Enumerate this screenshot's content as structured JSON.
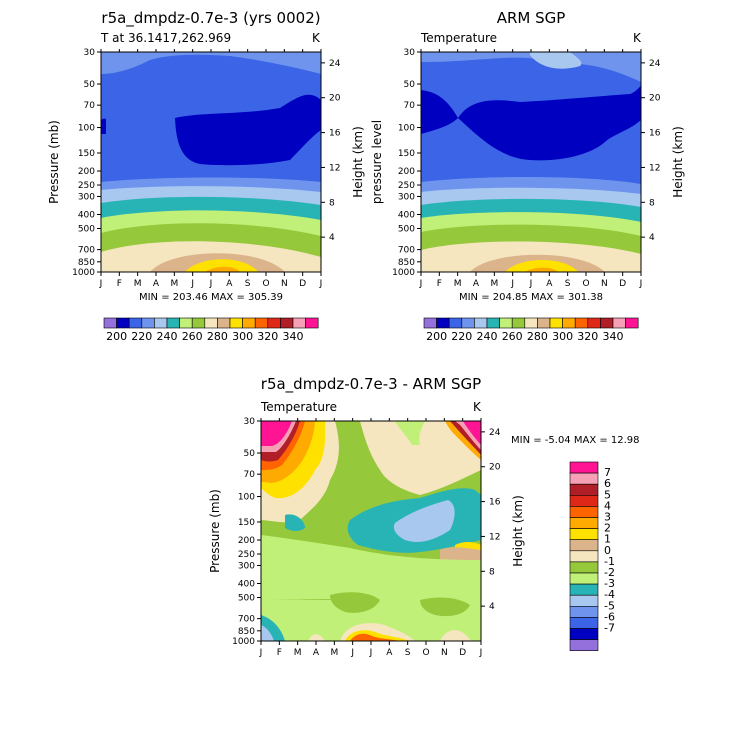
{
  "colors": {
    "abs_palette": [
      "#9370db",
      "#0000c0",
      "#3c64e6",
      "#6f94ee",
      "#a8c8f0",
      "#28b4b4",
      "#c0f078",
      "#96c83c",
      "#f5e6c0",
      "#dcb48c",
      "#ffe100",
      "#ffaa00",
      "#ff6400",
      "#e02818",
      "#b01e28",
      "#f5a0b4",
      "#ff1493"
    ],
    "diff_palette": [
      "#ff1493",
      "#f5a0b4",
      "#b01e28",
      "#e02818",
      "#ff6400",
      "#ffaa00",
      "#ffe100",
      "#dcb48c",
      "#f5e6c0",
      "#96c83c",
      "#c0f078",
      "#28b4b4",
      "#a8c8f0",
      "#6f94ee",
      "#3c64e6",
      "#0000c0",
      "#9370db"
    ]
  },
  "chart_data": [
    {
      "type": "heatmap",
      "id": "model",
      "title": "r5a_dmpdz-0.7e-3 (yrs 0002)",
      "subtitle_left": "T at 36.1417,262.969",
      "subtitle_right": "K",
      "ylabel": "Pressure (mb)",
      "y2label": "Height (km)",
      "x_ticks": [
        "J",
        "F",
        "M",
        "A",
        "M",
        "J",
        "J",
        "A",
        "S",
        "O",
        "N",
        "D",
        "J"
      ],
      "y_ticks": [
        "30",
        "50",
        "70",
        "100",
        "150",
        "200",
        "250",
        "300",
        "400",
        "500",
        "700",
        "850",
        "1000"
      ],
      "y_values": [
        30,
        50,
        70,
        100,
        150,
        200,
        250,
        300,
        400,
        500,
        700,
        850,
        1000
      ],
      "y2_ticks": [
        "24",
        "20",
        "16",
        "12",
        "8",
        "4"
      ],
      "y2_values": [
        24,
        20,
        16,
        12,
        8,
        4
      ],
      "min_max": "MIN = 203.46 MAX = 305.39",
      "min": 203.46,
      "max": 305.39
    },
    {
      "type": "heatmap",
      "id": "obs",
      "title": "ARM SGP",
      "subtitle_left": "Temperature",
      "subtitle_right": "K",
      "ylabel": "pressure level",
      "y2label": "Height (km)",
      "x_ticks": [
        "J",
        "F",
        "M",
        "A",
        "M",
        "J",
        "J",
        "A",
        "S",
        "O",
        "N",
        "D",
        "J"
      ],
      "y_ticks": [
        "30",
        "50",
        "70",
        "100",
        "150",
        "200",
        "250",
        "300",
        "400",
        "500",
        "700",
        "850",
        "1000"
      ],
      "y_values": [
        30,
        50,
        70,
        100,
        150,
        200,
        250,
        300,
        400,
        500,
        700,
        850,
        1000
      ],
      "y2_ticks": [
        "24",
        "20",
        "16",
        "12",
        "8",
        "4"
      ],
      "y2_values": [
        24,
        20,
        16,
        12,
        8,
        4
      ],
      "min_max": "MIN = 204.85 MAX = 301.38",
      "min": 204.85,
      "max": 301.38
    },
    {
      "type": "heatmap",
      "id": "diff",
      "title": "r5a_dmpdz-0.7e-3 - ARM SGP",
      "subtitle_left": "Temperature",
      "subtitle_right": "K",
      "ylabel": "Pressure (mb)",
      "y2label": "Height (km)",
      "x_ticks": [
        "J",
        "F",
        "M",
        "A",
        "M",
        "J",
        "J",
        "A",
        "S",
        "O",
        "N",
        "D",
        "J"
      ],
      "y_ticks": [
        "30",
        "50",
        "70",
        "100",
        "150",
        "200",
        "250",
        "300",
        "400",
        "500",
        "700",
        "850",
        "1000"
      ],
      "y_values": [
        30,
        50,
        70,
        100,
        150,
        200,
        250,
        300,
        400,
        500,
        700,
        850,
        1000
      ],
      "y2_ticks": [
        "24",
        "20",
        "16",
        "12",
        "8",
        "4"
      ],
      "y2_values": [
        24,
        20,
        16,
        12,
        8,
        4
      ],
      "min_max": "MIN =   -5.04 MAX =   12.98",
      "min": -5.04,
      "max": 12.98
    }
  ],
  "legend_abs": {
    "labels": [
      "200",
      "220",
      "240",
      "260",
      "280",
      "300",
      "320",
      "340"
    ],
    "levels": [
      200,
      210,
      220,
      230,
      240,
      250,
      260,
      270,
      280,
      290,
      300,
      310,
      320,
      330,
      340,
      350
    ]
  },
  "legend_diff": {
    "labels": [
      "7",
      "6",
      "5",
      "4",
      "3",
      "2",
      "1",
      "0",
      "-1",
      "-2",
      "-3",
      "-4",
      "-5",
      "-6",
      "-7"
    ],
    "levels": [
      7,
      6,
      5,
      4,
      3,
      2,
      1,
      0,
      -1,
      -2,
      -3,
      -4,
      -5,
      -6,
      -7
    ]
  }
}
